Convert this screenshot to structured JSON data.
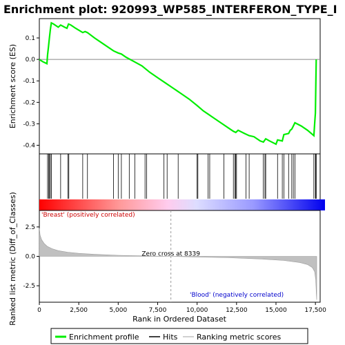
{
  "chart_data": [
    {
      "type": "line",
      "panel": "enrichment",
      "title": "Enrichment plot: 920993_WP585_INTERFERON_TYPE_I",
      "ylabel": "Enrichment score (ES)",
      "xlim": [
        0,
        17800
      ],
      "ylim": [
        -0.44,
        0.19
      ],
      "yticks": [
        0.1,
        0.0,
        -0.1,
        -0.2,
        -0.3,
        -0.4
      ],
      "ytick_labels": [
        "0.1",
        "0.0",
        "-0.1",
        "-0.2",
        "-0.3",
        "-0.4"
      ],
      "series": [
        {
          "name": "Enrichment profile",
          "color": "#00ee00",
          "x": [
            0,
            200,
            480,
            520,
            580,
            640,
            700,
            760,
            900,
            1200,
            1350,
            1600,
            1750,
            1850,
            2000,
            2300,
            2750,
            2900,
            3050,
            3500,
            4000,
            4700,
            5000,
            5200,
            5500,
            6000,
            6500,
            7000,
            7500,
            8000,
            8500,
            9000,
            9500,
            10000,
            10400,
            10700,
            11000,
            11500,
            12000,
            12300,
            12450,
            12600,
            13000,
            13300,
            13600,
            14000,
            14200,
            14350,
            14600,
            15000,
            15100,
            15400,
            15500,
            15800,
            15900,
            16000,
            16100,
            16200,
            16600,
            17000,
            17400,
            17450,
            17500,
            17530,
            17550
          ],
          "y": [
            0.0,
            -0.01,
            -0.02,
            0.02,
            0.06,
            0.1,
            0.14,
            0.17,
            0.165,
            0.15,
            0.16,
            0.15,
            0.145,
            0.165,
            0.16,
            0.145,
            0.125,
            0.13,
            0.125,
            0.1,
            0.075,
            0.04,
            0.03,
            0.025,
            0.01,
            -0.01,
            -0.03,
            -0.06,
            -0.085,
            -0.11,
            -0.135,
            -0.16,
            -0.185,
            -0.215,
            -0.24,
            -0.255,
            -0.27,
            -0.295,
            -0.32,
            -0.335,
            -0.34,
            -0.33,
            -0.345,
            -0.355,
            -0.36,
            -0.38,
            -0.385,
            -0.37,
            -0.38,
            -0.395,
            -0.375,
            -0.38,
            -0.35,
            -0.345,
            -0.33,
            -0.325,
            -0.31,
            -0.295,
            -0.31,
            -0.33,
            -0.355,
            -0.3,
            -0.25,
            -0.1,
            0.0
          ]
        }
      ]
    },
    {
      "type": "scatter",
      "panel": "hits",
      "series": [
        {
          "name": "Hits",
          "color": "#000000",
          "x": [
            520,
            590,
            640,
            700,
            760,
            1350,
            1820,
            1870,
            2750,
            3050,
            4700,
            5000,
            5200,
            5700,
            6050,
            6700,
            6800,
            7900,
            8100,
            8800,
            10000,
            10050,
            10700,
            10800,
            11700,
            12300,
            12400,
            12450,
            12500,
            13100,
            13300,
            14200,
            14300,
            14350,
            15100,
            15400,
            15500,
            15800,
            16000,
            16100,
            16200,
            17400,
            17500,
            17530,
            17550
          ]
        }
      ]
    },
    {
      "type": "area",
      "panel": "ranked-metric",
      "xlabel": "Rank in Ordered Dataset",
      "ylabel": "Ranked list metric (Diff_of_Classes)",
      "xlim": [
        0,
        17800
      ],
      "ylim": [
        -3.9,
        3.9
      ],
      "xticks": [
        0,
        2500,
        5000,
        7500,
        10000,
        12500,
        15000,
        17500
      ],
      "xtick_labels": [
        "0",
        "2,500",
        "5,000",
        "7,500",
        "10,000",
        "12,500",
        "15,000",
        "17,500"
      ],
      "yticks": [
        2.5,
        0.0,
        -2.5
      ],
      "ytick_labels": [
        "2.5",
        "0.0",
        "-2.5"
      ],
      "series": [
        {
          "name": "Ranking metric scores",
          "color": "#c0c0c0",
          "x": [
            0,
            50,
            150,
            300,
            500,
            800,
            1200,
            1800,
            2500,
            3500,
            5000,
            6500,
            8339,
            10000,
            12000,
            14000,
            15500,
            16500,
            17000,
            17300,
            17450,
            17520,
            17560,
            17580
          ],
          "y": [
            2.4,
            1.8,
            1.4,
            1.1,
            0.85,
            0.65,
            0.48,
            0.35,
            0.25,
            0.17,
            0.09,
            0.04,
            0.0,
            -0.05,
            -0.12,
            -0.22,
            -0.35,
            -0.52,
            -0.7,
            -0.95,
            -1.3,
            -2.0,
            -3.2,
            -3.7
          ]
        }
      ],
      "annotations": {
        "zero_cross": "Zero cross at 8339",
        "zero_cross_x": 8339,
        "positive_label": "'Breast' (positively correlated)",
        "negative_label": "'Blood' (negatively correlated)"
      }
    }
  ],
  "legend": {
    "items": [
      {
        "label": "Enrichment profile",
        "color": "#00ee00"
      },
      {
        "label": "Hits",
        "color": "#000000"
      },
      {
        "label": "Ranking metric scores",
        "color": "#c0c0c0"
      }
    ]
  }
}
